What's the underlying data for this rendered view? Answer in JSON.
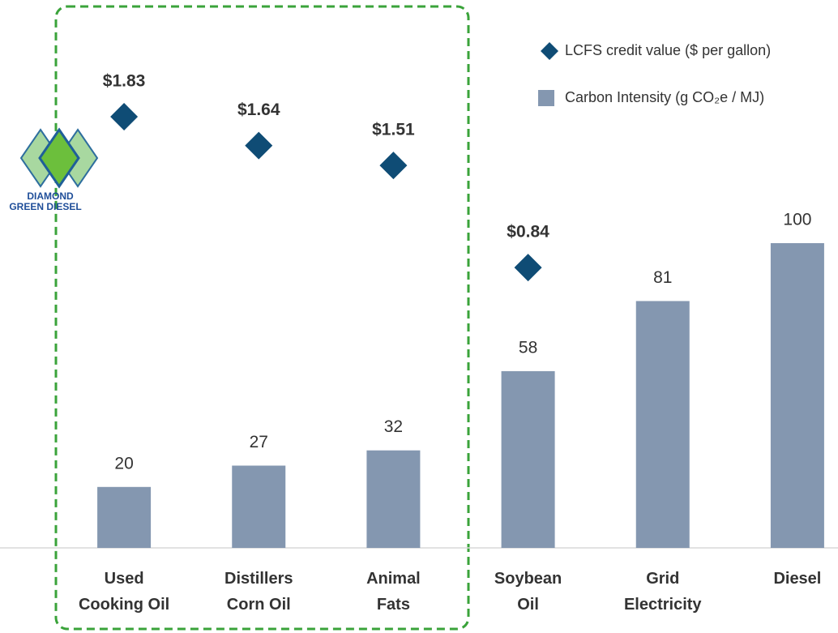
{
  "chart_data": {
    "type": "bar",
    "categories": [
      "Used\nCooking Oil",
      "Distillers\nCorn Oil",
      "Animal\nFats",
      "Soybean\nOil",
      "Grid\nElectricity",
      "Diesel"
    ],
    "series": [
      {
        "name": "LCFS credit value ($ per gallon)",
        "type": "scatter",
        "axis": "y2",
        "color": "#0f4c75",
        "values": [
          1.83,
          1.64,
          1.51,
          0.84,
          null,
          null
        ],
        "value_labels": [
          "$1.83",
          "$1.64",
          "$1.51",
          "$0.84",
          null,
          null
        ]
      },
      {
        "name": "Carbon Intensity (g CO₂e / MJ)",
        "type": "bar",
        "color": "#8497b0",
        "values": [
          20,
          27,
          32,
          58,
          81,
          100
        ]
      }
    ],
    "ylim": [
      0,
      100
    ],
    "y2lim": [
      -1,
      1
    ],
    "logo": [
      "DIAMOND",
      "GREEN DIESEL"
    ]
  }
}
